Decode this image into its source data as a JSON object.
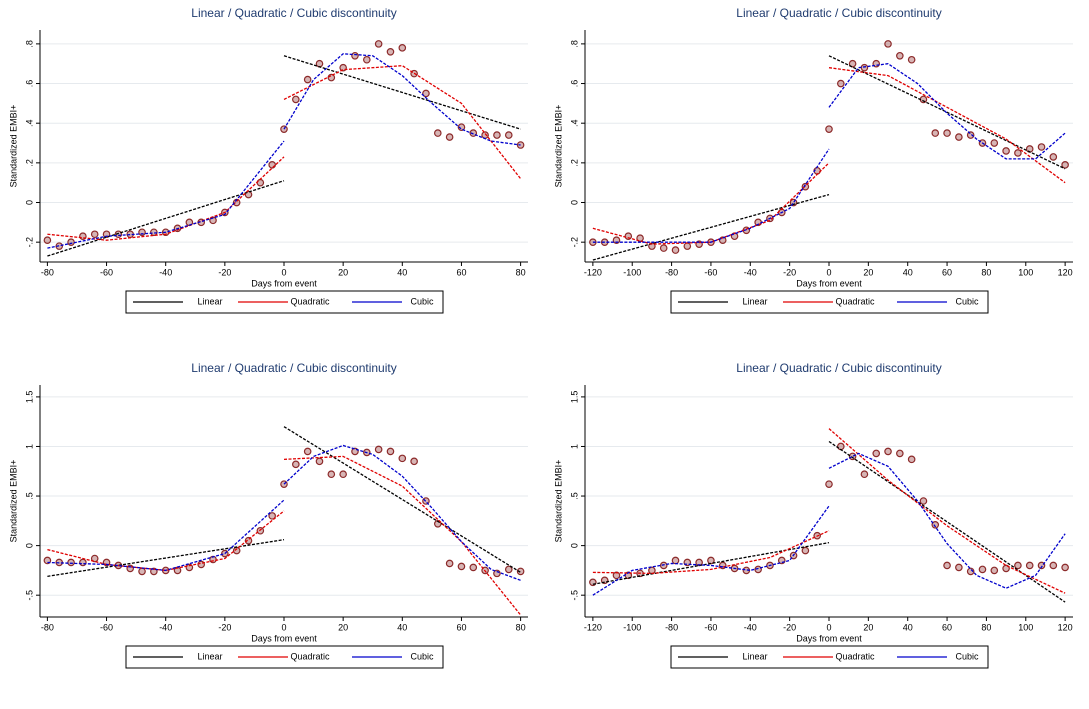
{
  "chart_data": [
    {
      "type": "scatter",
      "title": "Linear / Quadratic / Cubic discontinuity",
      "xlabel": "Days from event",
      "ylabel": "Standardized EMBI+",
      "xlim": [
        -82.5,
        82.5
      ],
      "xticks": [
        -80,
        -60,
        -40,
        -20,
        0,
        20,
        40,
        60,
        80
      ],
      "ylim": [
        -0.3,
        0.87
      ],
      "yticks": [
        {
          "value": -0.2,
          "label": "-.2"
        },
        0,
        {
          "value": 0.2,
          "label": ".2"
        },
        {
          "value": 0.4,
          "label": ".4"
        },
        {
          "value": 0.6,
          "label": ".6"
        },
        {
          "value": 0.8,
          "label": ".8"
        }
      ],
      "grid": true,
      "scatter": {
        "color": "#8c2a2a",
        "x": [
          -80,
          -76,
          -72,
          -68,
          -64,
          -60,
          -56,
          -52,
          -48,
          -44,
          -40,
          -36,
          -32,
          -28,
          -24,
          -20,
          -16,
          -12,
          -8,
          -4,
          0,
          4,
          8,
          12,
          16,
          20,
          24,
          28,
          32,
          36,
          40,
          44,
          48,
          52,
          56,
          60,
          64,
          68,
          72,
          76,
          80
        ],
        "values": [
          -0.19,
          -0.22,
          -0.2,
          -0.17,
          -0.16,
          -0.16,
          -0.16,
          -0.16,
          -0.15,
          -0.15,
          -0.15,
          -0.13,
          -0.1,
          -0.1,
          -0.09,
          -0.05,
          0.0,
          0.04,
          0.1,
          0.19,
          0.37,
          0.52,
          0.62,
          0.7,
          0.63,
          0.68,
          0.74,
          0.72,
          0.8,
          0.76,
          0.78,
          0.65,
          0.55,
          0.35,
          0.33,
          0.38,
          0.35,
          0.34,
          0.34,
          0.34,
          0.29
        ]
      },
      "series": [
        {
          "name": "Linear",
          "color": "#000000",
          "x": [
            -80,
            0,
            0,
            0,
            80
          ],
          "values": [
            -0.27,
            0.11,
            null,
            0.74,
            0.37
          ]
        },
        {
          "name": "Quadratic",
          "color": "#e00000",
          "x": [
            -80,
            -60,
            -40,
            -20,
            0,
            0,
            0,
            20,
            40,
            60,
            80
          ],
          "values": [
            -0.16,
            -0.19,
            -0.16,
            -0.05,
            0.23,
            null,
            0.52,
            0.67,
            0.69,
            0.5,
            0.12
          ]
        },
        {
          "name": "Cubic",
          "color": "#0000cc",
          "x": [
            -80,
            -60,
            -40,
            -20,
            0,
            0,
            0,
            10,
            20,
            30,
            40,
            50,
            60,
            70,
            80
          ],
          "values": [
            -0.23,
            -0.17,
            -0.15,
            -0.06,
            0.31,
            null,
            0.37,
            0.62,
            0.75,
            0.74,
            0.64,
            0.5,
            0.37,
            0.31,
            0.29
          ]
        }
      ]
    },
    {
      "type": "scatter",
      "title": "Linear / Quadratic / Cubic discontinuity",
      "xlabel": "Days from event",
      "ylabel": "Standardized EMBI+",
      "xlim": [
        -124,
        124
      ],
      "xticks": [
        -120,
        -100,
        -80,
        -60,
        -40,
        -20,
        0,
        20,
        40,
        60,
        80,
        100,
        120
      ],
      "ylim": [
        -0.3,
        0.87
      ],
      "yticks": [
        {
          "value": -0.2,
          "label": "-.2"
        },
        0,
        {
          "value": 0.2,
          "label": ".2"
        },
        {
          "value": 0.4,
          "label": ".4"
        },
        {
          "value": 0.6,
          "label": ".6"
        },
        {
          "value": 0.8,
          "label": ".8"
        }
      ],
      "grid": true,
      "scatter": {
        "color": "#8c2a2a",
        "x": [
          -120,
          -114,
          -108,
          -102,
          -96,
          -90,
          -84,
          -78,
          -72,
          -66,
          -60,
          -54,
          -48,
          -42,
          -36,
          -30,
          -24,
          -18,
          -12,
          -6,
          0,
          6,
          12,
          18,
          24,
          30,
          36,
          42,
          48,
          54,
          60,
          66,
          72,
          78,
          84,
          90,
          96,
          102,
          108,
          114,
          120
        ],
        "values": [
          -0.2,
          -0.2,
          -0.19,
          -0.17,
          -0.18,
          -0.22,
          -0.23,
          -0.24,
          -0.22,
          -0.21,
          -0.2,
          -0.19,
          -0.17,
          -0.14,
          -0.1,
          -0.08,
          -0.05,
          0.0,
          0.08,
          0.16,
          0.37,
          0.6,
          0.7,
          0.68,
          0.7,
          0.8,
          0.74,
          0.72,
          0.52,
          0.35,
          0.35,
          0.33,
          0.34,
          0.3,
          0.3,
          0.26,
          0.25,
          0.27,
          0.28,
          0.23,
          0.19
        ]
      },
      "series": [
        {
          "name": "Linear",
          "color": "#000000",
          "x": [
            -120,
            0,
            0,
            0,
            120
          ],
          "values": [
            -0.29,
            0.04,
            null,
            0.74,
            0.17
          ]
        },
        {
          "name": "Quadratic",
          "color": "#e00000",
          "x": [
            -120,
            -90,
            -60,
            -30,
            0,
            0,
            0,
            30,
            60,
            90,
            120
          ],
          "values": [
            -0.13,
            -0.21,
            -0.2,
            -0.09,
            0.2,
            null,
            0.68,
            0.64,
            0.48,
            0.32,
            0.1
          ]
        },
        {
          "name": "Cubic",
          "color": "#0000cc",
          "x": [
            -120,
            -90,
            -60,
            -40,
            -20,
            0,
            0,
            0,
            15,
            30,
            45,
            60,
            75,
            90,
            105,
            120
          ],
          "values": [
            -0.2,
            -0.2,
            -0.2,
            -0.13,
            -0.03,
            0.27,
            null,
            0.48,
            0.68,
            0.7,
            0.6,
            0.45,
            0.32,
            0.22,
            0.22,
            0.35
          ]
        }
      ]
    },
    {
      "type": "scatter",
      "title": "Linear / Quadratic / Cubic discontinuity",
      "xlabel": "Days from event",
      "ylabel": "Standardized EMBI+",
      "xlim": [
        -82.5,
        82.5
      ],
      "xticks": [
        -80,
        -60,
        -40,
        -20,
        0,
        20,
        40,
        60,
        80
      ],
      "ylim": [
        -0.72,
        1.62
      ],
      "yticks": [
        {
          "value": -0.5,
          "label": "-.5"
        },
        0,
        {
          "value": 0.5,
          "label": ".5"
        },
        1,
        1.5
      ],
      "grid": true,
      "scatter": {
        "color": "#8c2a2a",
        "x": [
          -80,
          -76,
          -72,
          -68,
          -64,
          -60,
          -56,
          -52,
          -48,
          -44,
          -40,
          -36,
          -32,
          -28,
          -24,
          -20,
          -16,
          -12,
          -8,
          -4,
          0,
          4,
          8,
          12,
          16,
          20,
          24,
          28,
          32,
          36,
          40,
          44,
          48,
          52,
          56,
          60,
          64,
          68,
          72,
          76,
          80
        ],
        "values": [
          -0.15,
          -0.17,
          -0.17,
          -0.17,
          -0.13,
          -0.17,
          -0.2,
          -0.23,
          -0.26,
          -0.26,
          -0.25,
          -0.25,
          -0.22,
          -0.19,
          -0.14,
          -0.08,
          -0.05,
          0.05,
          0.15,
          0.3,
          0.62,
          0.82,
          0.95,
          0.85,
          0.72,
          0.72,
          0.95,
          0.94,
          0.97,
          0.95,
          0.88,
          0.85,
          0.45,
          0.22,
          -0.18,
          -0.21,
          -0.22,
          -0.25,
          -0.28,
          -0.24,
          -0.26
        ]
      },
      "series": [
        {
          "name": "Linear",
          "color": "#000000",
          "x": [
            -80,
            0,
            0,
            0,
            80
          ],
          "values": [
            -0.31,
            0.06,
            null,
            1.2,
            -0.27
          ]
        },
        {
          "name": "Quadratic",
          "color": "#e00000",
          "x": [
            -80,
            -60,
            -40,
            -20,
            0,
            0,
            0,
            20,
            40,
            60,
            80
          ],
          "values": [
            -0.04,
            -0.19,
            -0.25,
            -0.13,
            0.35,
            null,
            0.87,
            0.9,
            0.6,
            0.04,
            -0.7
          ]
        },
        {
          "name": "Cubic",
          "color": "#0000cc",
          "x": [
            -80,
            -60,
            -40,
            -20,
            0,
            0,
            0,
            10,
            20,
            30,
            40,
            50,
            60,
            70,
            80
          ],
          "values": [
            -0.17,
            -0.19,
            -0.25,
            -0.08,
            0.46,
            null,
            0.62,
            0.9,
            1.01,
            0.92,
            0.7,
            0.38,
            0.04,
            -0.24,
            -0.35
          ]
        }
      ]
    },
    {
      "type": "scatter",
      "title": "Linear / Quadratic / Cubic discontinuity",
      "xlabel": "Days from event",
      "ylabel": "Standardized EMBI+",
      "xlim": [
        -124,
        124
      ],
      "xticks": [
        -120,
        -100,
        -80,
        -60,
        -40,
        -20,
        0,
        20,
        40,
        60,
        80,
        100,
        120
      ],
      "ylim": [
        -0.72,
        1.62
      ],
      "yticks": [
        {
          "value": -0.5,
          "label": "-.5"
        },
        0,
        {
          "value": 0.5,
          "label": ".5"
        },
        1,
        1.5
      ],
      "grid": true,
      "scatter": {
        "color": "#8c2a2a",
        "x": [
          -120,
          -114,
          -108,
          -102,
          -96,
          -90,
          -84,
          -78,
          -72,
          -66,
          -60,
          -54,
          -48,
          -42,
          -36,
          -30,
          -24,
          -18,
          -12,
          -6,
          0,
          6,
          12,
          18,
          24,
          30,
          36,
          42,
          48,
          54,
          60,
          66,
          72,
          78,
          84,
          90,
          96,
          102,
          108,
          114,
          120
        ],
        "values": [
          -0.37,
          -0.35,
          -0.3,
          -0.3,
          -0.28,
          -0.25,
          -0.2,
          -0.15,
          -0.17,
          -0.17,
          -0.15,
          -0.2,
          -0.23,
          -0.25,
          -0.24,
          -0.2,
          -0.15,
          -0.1,
          -0.05,
          0.1,
          0.62,
          1.0,
          0.9,
          0.72,
          0.93,
          0.95,
          0.93,
          0.87,
          0.45,
          0.21,
          -0.2,
          -0.22,
          -0.26,
          -0.24,
          -0.25,
          -0.23,
          -0.2,
          -0.2,
          -0.2,
          -0.2,
          -0.22
        ]
      },
      "series": [
        {
          "name": "Linear",
          "color": "#000000",
          "x": [
            -120,
            0,
            0,
            0,
            120
          ],
          "values": [
            -0.39,
            0.03,
            null,
            1.05,
            -0.57
          ]
        },
        {
          "name": "Quadratic",
          "color": "#e00000",
          "x": [
            -120,
            -90,
            -60,
            -30,
            0,
            0,
            0,
            30,
            60,
            90,
            120
          ],
          "values": [
            -0.27,
            -0.28,
            -0.24,
            -0.12,
            0.15,
            null,
            1.18,
            0.66,
            0.2,
            -0.2,
            -0.48
          ]
        },
        {
          "name": "Cubic",
          "color": "#0000cc",
          "x": [
            -120,
            -100,
            -80,
            -60,
            -40,
            -20,
            0,
            0,
            0,
            15,
            30,
            45,
            60,
            75,
            90,
            105,
            120
          ],
          "values": [
            -0.5,
            -0.25,
            -0.18,
            -0.2,
            -0.25,
            -0.15,
            0.4,
            null,
            0.78,
            0.93,
            0.8,
            0.45,
            0.02,
            -0.3,
            -0.43,
            -0.3,
            0.12
          ]
        }
      ]
    }
  ]
}
